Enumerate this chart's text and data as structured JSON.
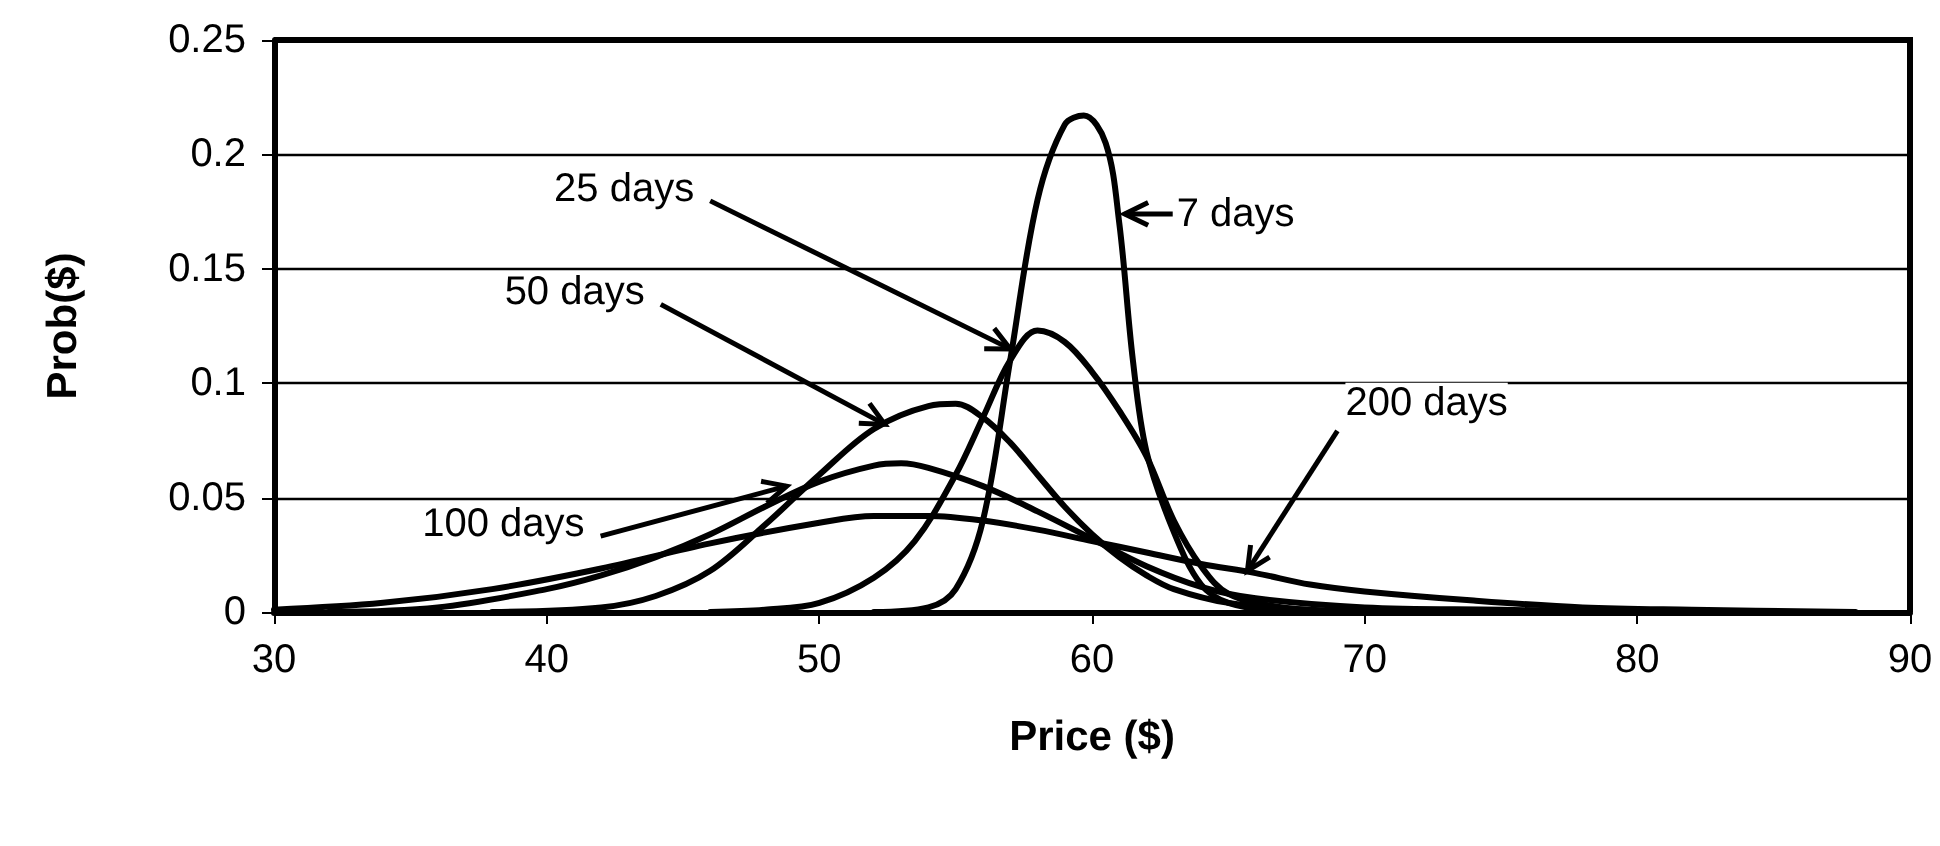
{
  "chart_data": {
    "type": "line",
    "xlabel": "Price ($)",
    "ylabel": "Prob($)",
    "xlim": [
      30,
      90
    ],
    "xticks": [
      30,
      40,
      50,
      60,
      70,
      80,
      90
    ],
    "ylim": [
      0,
      0.25
    ],
    "yticks": [
      0,
      0.05,
      0.1,
      0.15,
      0.2,
      0.25
    ],
    "grid": "y",
    "marker": "none",
    "line_style": "solid",
    "series": [
      {
        "color": "#000000",
        "x": [
          52,
          54,
          55,
          56,
          57,
          58,
          59,
          59.7,
          60.5,
          61,
          61.5,
          62,
          63,
          64,
          65,
          67
        ],
        "values": [
          0,
          0.002,
          0.01,
          0.04,
          0.11,
          0.18,
          0.213,
          0.217,
          0.205,
          0.17,
          0.11,
          0.07,
          0.035,
          0.012,
          0.004,
          0
        ]
      },
      {
        "color": "#000000",
        "x": [
          46,
          48,
          50,
          52,
          53.5,
          55,
          56,
          57,
          58,
          59,
          60,
          61,
          62,
          63,
          64,
          65,
          67,
          70
        ],
        "values": [
          0,
          0.001,
          0.004,
          0.015,
          0.031,
          0.06,
          0.085,
          0.11,
          0.123,
          0.118,
          0.105,
          0.088,
          0.068,
          0.04,
          0.02,
          0.008,
          0.002,
          0
        ]
      },
      {
        "color": "#000000",
        "x": [
          38,
          42,
          44,
          46,
          48,
          50,
          52,
          54,
          55,
          56,
          57,
          58,
          59,
          60,
          61,
          62,
          63,
          65,
          68,
          72
        ],
        "values": [
          0,
          0.002,
          0.007,
          0.018,
          0.038,
          0.06,
          0.08,
          0.09,
          0.091,
          0.085,
          0.074,
          0.06,
          0.046,
          0.034,
          0.024,
          0.016,
          0.01,
          0.004,
          0.001,
          0
        ]
      },
      {
        "color": "#000000",
        "x": [
          32,
          36,
          40,
          42,
          44,
          46,
          48,
          50,
          52,
          53,
          54,
          56,
          58,
          60,
          62,
          64,
          66,
          70,
          75,
          80
        ],
        "values": [
          0,
          0.002,
          0.01,
          0.016,
          0.024,
          0.034,
          0.046,
          0.057,
          0.064,
          0.065,
          0.063,
          0.055,
          0.044,
          0.032,
          0.02,
          0.011,
          0.006,
          0.002,
          0.001,
          0
        ]
      },
      {
        "color": "#000000",
        "x": [
          30,
          34,
          38,
          42,
          46,
          50,
          52,
          54,
          56,
          58,
          60,
          62,
          64,
          66,
          68,
          70,
          74,
          78,
          82,
          88
        ],
        "values": [
          0.001,
          0.004,
          0.01,
          0.019,
          0.03,
          0.039,
          0.042,
          0.042,
          0.04,
          0.036,
          0.031,
          0.026,
          0.021,
          0.017,
          0.012,
          0.009,
          0.005,
          0.002,
          0.001,
          0
        ]
      }
    ],
    "annotations": [
      {
        "text": "7 days",
        "x": 61.2,
        "y": 0.174
      },
      {
        "text": "25 days",
        "x": 57,
        "y": 0.115
      },
      {
        "text": "50 days",
        "x": 52.4,
        "y": 0.082
      },
      {
        "text": "100 days",
        "x": 48.8,
        "y": 0.055
      },
      {
        "text": "200 days",
        "x": 65.7,
        "y": 0.018
      }
    ]
  }
}
